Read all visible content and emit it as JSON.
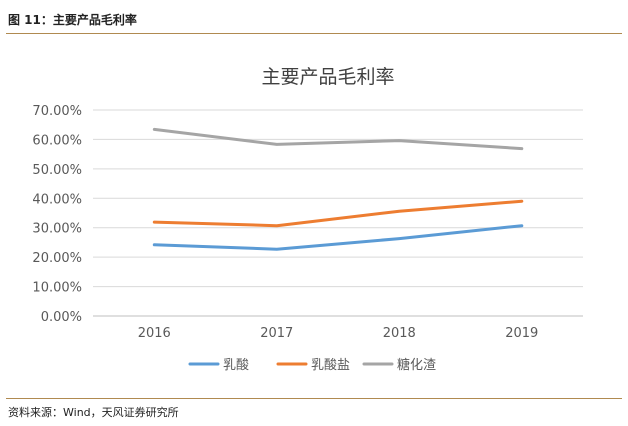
{
  "figure": {
    "caption": "图 11：主要产品毛利率",
    "source": "资料来源：Wind，天风证券研究所"
  },
  "chart_data": {
    "type": "line",
    "title": "主要产品毛利率",
    "x": [
      "2016",
      "2017",
      "2018",
      "2019"
    ],
    "y_ticks": [
      "0.00%",
      "10.00%",
      "20.00%",
      "30.00%",
      "40.00%",
      "50.00%",
      "60.00%",
      "70.00%"
    ],
    "ylim": [
      0,
      70
    ],
    "grid": true,
    "legend_position": "bottom",
    "series": [
      {
        "name": "乳酸",
        "color": "#5b9bd5",
        "values": [
          24.2,
          22.7,
          26.3,
          30.7
        ]
      },
      {
        "name": "乳酸盐",
        "color": "#ed7d31",
        "values": [
          31.9,
          30.7,
          35.6,
          39.0
        ]
      },
      {
        "name": "糖化渣",
        "color": "#a5a5a5",
        "values": [
          63.4,
          58.3,
          59.6,
          56.9
        ]
      }
    ]
  }
}
